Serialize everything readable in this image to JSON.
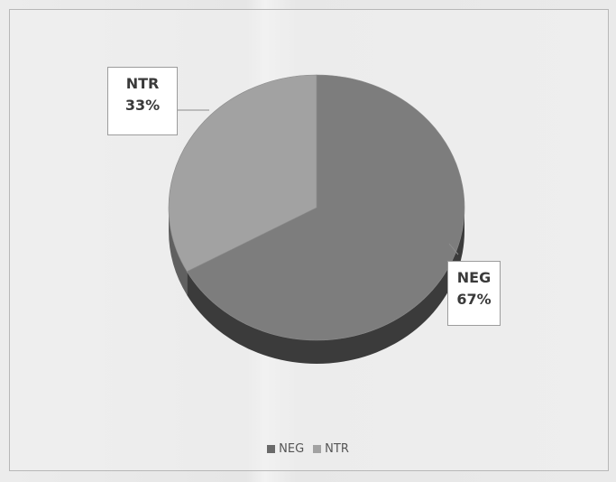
{
  "chart_data": {
    "type": "pie",
    "categories": [
      "NEG",
      "NTR"
    ],
    "values": [
      67,
      33
    ],
    "value_labels": [
      "67%",
      "33%"
    ],
    "colors": [
      "#7d7d7d",
      "#a2a2a2"
    ],
    "shade_colors": [
      "#3b3b3b",
      "#606060"
    ],
    "legend_placement": "bottom",
    "three_d": true
  },
  "legend": {
    "items": [
      {
        "label": "NEG",
        "color": "#6a6a6a"
      },
      {
        "label": "NTR",
        "color": "#a2a2a2"
      }
    ]
  },
  "labels": {
    "ntr_name": "NTR",
    "ntr_value": "33%",
    "neg_name": "NEG",
    "neg_value": "67%"
  }
}
